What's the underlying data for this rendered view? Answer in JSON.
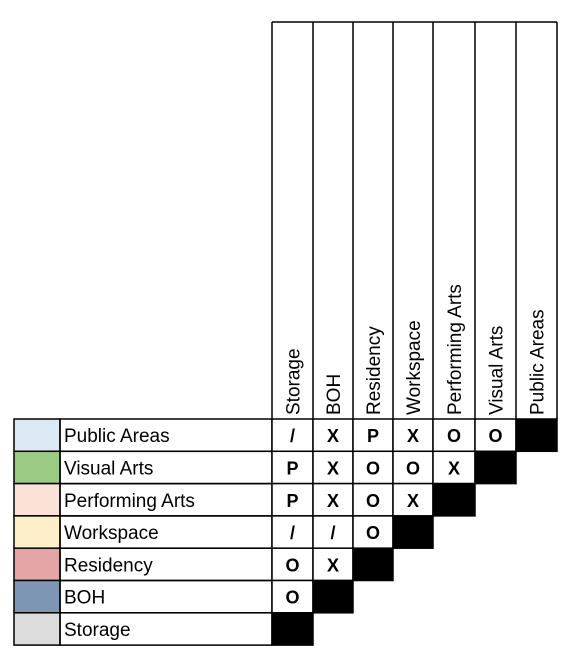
{
  "matrix": {
    "columns": [
      "Storage",
      "BOH",
      "Residency",
      "Workspace",
      "Performing Arts",
      "Visual Arts",
      "Public Areas"
    ],
    "rows": [
      {
        "label": "Public Areas",
        "color": "#dce9f5",
        "cells": [
          "/",
          "X",
          "P",
          "X",
          "O",
          "O"
        ]
      },
      {
        "label": "Visual Arts",
        "color": "#9bcb83",
        "cells": [
          "P",
          "X",
          "O",
          "O",
          "X"
        ]
      },
      {
        "label": "Performing Arts",
        "color": "#fbe2d8",
        "cells": [
          "P",
          "X",
          "O",
          "X"
        ]
      },
      {
        "label": "Workspace",
        "color": "#fdefc9",
        "cells": [
          "/",
          "/",
          "O"
        ]
      },
      {
        "label": "Residency",
        "color": "#e3a5a5",
        "cells": [
          "O",
          "X"
        ]
      },
      {
        "label": "BOH",
        "color": "#7c96b3",
        "cells": [
          "O"
        ]
      },
      {
        "label": "Storage",
        "color": "#dcdcdc",
        "cells": []
      }
    ],
    "filled_color": "#000000"
  }
}
